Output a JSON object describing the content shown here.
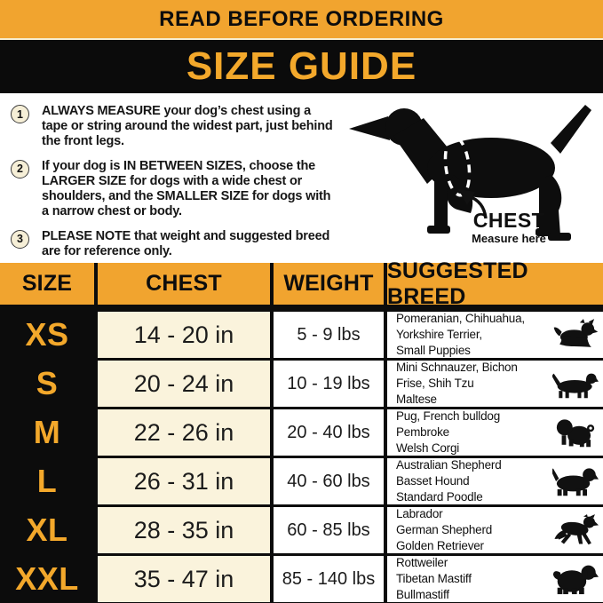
{
  "banner": {
    "top_label": "READ BEFORE ORDERING",
    "title": "SIZE GUIDE"
  },
  "colors": {
    "gold": "#F1A42F",
    "gold_text": "#F3A82B",
    "black": "#0b0b0b",
    "cream": "#FAF3DC"
  },
  "instructions": [
    {
      "number": "1",
      "text": "ALWAYS MEASURE your dog’s chest using a tape or string around the widest part, just behind the front legs."
    },
    {
      "number": "2",
      "text": "If your dog is IN BETWEEN SIZES, choose the LARGER SIZE for dogs with a wide chest or shoulders, and the SMALLER SIZE for dogs with a narrow chest or body."
    },
    {
      "number": "3",
      "text": "PLEASE NOTE that weight and suggested breed are for reference only."
    }
  ],
  "figure": {
    "label": "CHEST",
    "sublabel": "Measure here"
  },
  "table": {
    "headers": [
      "SIZE",
      "CHEST",
      "WEIGHT",
      "SUGGESTED BREED"
    ],
    "rows": [
      {
        "size": "XS",
        "chest": "14 - 20 in",
        "weight": "5 - 9 lbs",
        "breeds": "Pomeranian, Chihuahua,\nYorkshire Terrier,\nSmall Puppies",
        "icon": "yorkshire-terrier-icon"
      },
      {
        "size": "S",
        "chest": "20 - 24 in",
        "weight": "10 - 19 lbs",
        "breeds": "Mini Schnauzer, Bichon\nFrise, Shih Tzu\nMaltese",
        "icon": "dachshund-icon"
      },
      {
        "size": "M",
        "chest": "22 - 26 in",
        "weight": "20 - 40 lbs",
        "breeds": "Pug, French bulldog\nPembroke\nWelsh Corgi",
        "icon": "pug-icon"
      },
      {
        "size": "L",
        "chest": "26 - 31 in",
        "weight": "40 - 60 lbs",
        "breeds": "Australian Shepherd\nBasset Hound\nStandard Poodle",
        "icon": "basset-hound-icon"
      },
      {
        "size": "XL",
        "chest": "28 - 35 in",
        "weight": "60 - 85 lbs",
        "breeds": "Labrador\nGerman Shepherd\nGolden Retriever",
        "icon": "german-shepherd-icon"
      },
      {
        "size": "XXL",
        "chest": "35 - 47 in",
        "weight": "85 - 140 lbs",
        "breeds": "Rottweiler\nTibetan Mastiff\nBullmastiff",
        "icon": "mastiff-icon"
      }
    ]
  }
}
